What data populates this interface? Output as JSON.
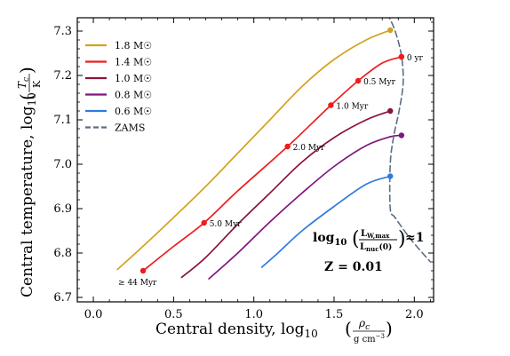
{
  "chart_data": {
    "type": "line",
    "xlabel": "Central density, log",
    "xlabel_sub": "10",
    "xlabel_frac_num": "ρ",
    "xlabel_frac_num_sub": "c",
    "xlabel_frac_den": "g cm",
    "xlabel_frac_den_sup": "−3",
    "ylabel": "Central temperature, log",
    "ylabel_sub": "10",
    "ylabel_frac_num": "T",
    "ylabel_frac_num_sub": "c",
    "ylabel_frac_den": "K",
    "xlim": [
      -0.1,
      2.12
    ],
    "ylim": [
      6.69,
      7.33
    ],
    "x_ticks": [
      0.0,
      0.5,
      1.0,
      1.5,
      2.0
    ],
    "x_tick_labels": [
      "0.0",
      "0.5",
      "1.0",
      "1.5",
      "2.0"
    ],
    "y_ticks": [
      6.7,
      6.8,
      6.9,
      7.0,
      7.1,
      7.2,
      7.3
    ],
    "y_tick_labels": [
      "6.7",
      "6.8",
      "6.9",
      "7.0",
      "7.1",
      "7.2",
      "7.3"
    ],
    "legend_position": "top-left",
    "series": [
      {
        "name": "1.8 M☉",
        "mass": "1.8",
        "color": "#d4a21e",
        "x": [
          0.15,
          0.3,
          0.5,
          0.7,
          0.9,
          1.1,
          1.3,
          1.5,
          1.7,
          1.85
        ],
        "y": [
          6.763,
          6.812,
          6.88,
          6.95,
          7.025,
          7.1,
          7.175,
          7.236,
          7.28,
          7.302
        ],
        "end_marker": true
      },
      {
        "name": "1.4 M☉",
        "mass": "1.4",
        "color": "#ee1c1c",
        "x": [
          0.31,
          0.5,
          0.69,
          0.9,
          1.21,
          1.48,
          1.65,
          1.8,
          1.92
        ],
        "y": [
          6.76,
          6.815,
          6.868,
          6.94,
          7.04,
          7.133,
          7.188,
          7.228,
          7.242
        ],
        "end_marker": true,
        "age_markers": [
          {
            "x": 0.31,
            "y": 6.76,
            "label": "≥ 44 Myr"
          },
          {
            "x": 0.69,
            "y": 6.868,
            "label": "5.0 Myr"
          },
          {
            "x": 1.21,
            "y": 7.04,
            "label": "2.0 Myr"
          },
          {
            "x": 1.48,
            "y": 7.133,
            "label": "1.0 Myr"
          },
          {
            "x": 1.65,
            "y": 7.188,
            "label": "0.5 Myr"
          },
          {
            "x": 1.92,
            "y": 7.242,
            "label": "0 yr"
          }
        ]
      },
      {
        "name": "1.0 M☉",
        "mass": "1.0",
        "color": "#8b1535",
        "x": [
          0.55,
          0.7,
          0.9,
          1.1,
          1.3,
          1.5,
          1.7,
          1.85
        ],
        "y": [
          6.745,
          6.79,
          6.865,
          6.935,
          7.005,
          7.06,
          7.1,
          7.12
        ],
        "end_marker": true
      },
      {
        "name": "0.8 M☉",
        "mass": "0.8",
        "color": "#80157e",
        "x": [
          0.72,
          0.9,
          1.1,
          1.3,
          1.5,
          1.7,
          1.85,
          1.92
        ],
        "y": [
          6.742,
          6.8,
          6.87,
          6.935,
          6.995,
          7.042,
          7.062,
          7.065
        ],
        "end_marker": true
      },
      {
        "name": "0.6 M☉",
        "mass": "0.6",
        "color": "#2e7be0",
        "x": [
          1.05,
          1.15,
          1.3,
          1.5,
          1.7,
          1.85
        ],
        "y": [
          6.768,
          6.8,
          6.85,
          6.905,
          6.955,
          6.973
        ],
        "end_marker": true
      },
      {
        "name": "ZAMS",
        "color": "#5c6e84",
        "dashed": true,
        "x": [
          1.83,
          1.87,
          1.905,
          1.925,
          1.93,
          1.905,
          1.87,
          1.85,
          1.85,
          1.88,
          1.98,
          2.1
        ],
        "y": [
          7.34,
          7.31,
          7.27,
          7.23,
          7.18,
          7.12,
          7.06,
          7.0,
          6.9,
          6.88,
          6.83,
          6.78
        ],
        "end_marker": false
      }
    ],
    "annotations": {
      "condition_lhs": "log",
      "condition_lhs_sub": "10",
      "condition_num": "L",
      "condition_num_sub": "W,max",
      "condition_den": "L",
      "condition_den_sub": "nuc",
      "condition_den_arg": "(0)",
      "condition_rhs": "≈1",
      "metallicity": "Z = 0.01"
    }
  }
}
